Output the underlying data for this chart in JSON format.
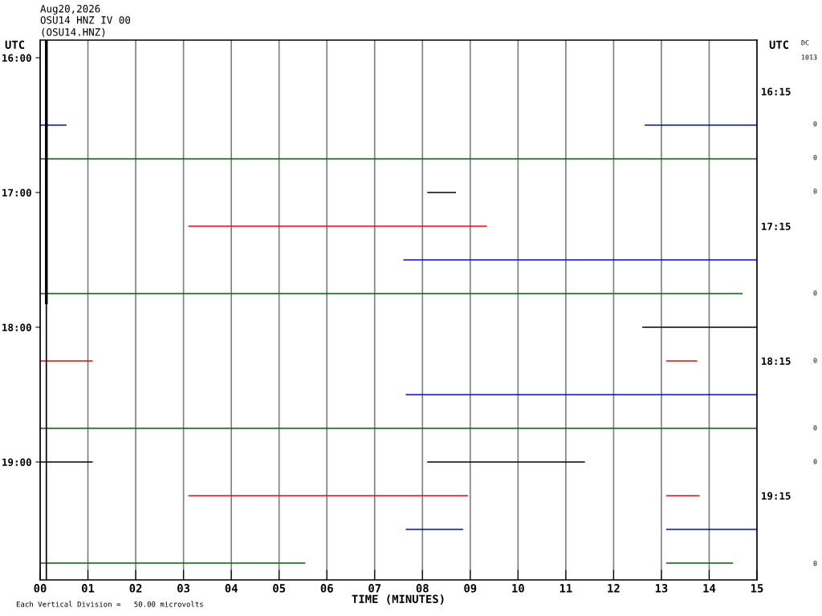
{
  "chart_data": {
    "type": "line",
    "title": "Aug20,2026",
    "subtitle": "OSU14 HNZ IV 00",
    "annotations": [
      "(OSU14.HNZ)",
      "Each Vertical Division =   50.00 microvolts",
      "DC",
      "1013",
      "0",
      "0",
      "0",
      "0",
      "0",
      "0",
      "0",
      "0"
    ],
    "xlabel": "TIME (MINUTES)",
    "ylabel": "UTC",
    "y2label": "UTC",
    "xlim": [
      0,
      15
    ],
    "xticks": [
      {
        "value": 0,
        "label": "00"
      },
      {
        "value": 1,
        "label": "01"
      },
      {
        "value": 2,
        "label": "02"
      },
      {
        "value": 3,
        "label": "03"
      },
      {
        "value": 4,
        "label": "04"
      },
      {
        "value": 5,
        "label": "05"
      },
      {
        "value": 6,
        "label": "06"
      },
      {
        "value": 7,
        "label": "07"
      },
      {
        "value": 8,
        "label": "08"
      },
      {
        "value": 9,
        "label": "09"
      },
      10,
      11,
      12,
      13,
      14,
      15
    ],
    "ylim": [
      19.875,
      15.869
    ],
    "yticks": [
      {
        "value": 16,
        "label": "16:00"
      },
      {
        "value": 17,
        "label": "17:00"
      },
      {
        "value": 18,
        "label": "18:00"
      },
      {
        "value": 19,
        "label": "19:00"
      }
    ],
    "y2lim": [
      19.875,
      15.869
    ],
    "y2ticks": [
      {
        "value": 16.25,
        "label": "16:15"
      },
      {
        "value": 17.25,
        "label": "17:15"
      },
      {
        "value": 18.25,
        "label": "18:15"
      },
      {
        "value": 19.25,
        "label": "19:15"
      }
    ],
    "grid": "x",
    "legend": false,
    "marker": "none",
    "line_style": "solid",
    "series": [
      {
        "color": "#0000ff",
        "x": [
          0,
          0.55
        ],
        "values": [
          16.5,
          16.5
        ]
      },
      {
        "color": "#0000ff",
        "x": [
          12.65,
          15
        ],
        "values": [
          16.5,
          16.5
        ]
      },
      {
        "color": "#006400",
        "x": [
          0,
          15
        ],
        "values": [
          16.75,
          16.75
        ]
      },
      {
        "color": "#000000",
        "x": [
          8.1,
          8.7
        ],
        "values": [
          17,
          17
        ]
      },
      {
        "color": "#ff0000",
        "x": [
          3.1,
          9.35
        ],
        "values": [
          17.25,
          17.25
        ]
      },
      {
        "color": "#0000ff",
        "x": [
          7.6,
          15
        ],
        "values": [
          17.5,
          17.5
        ]
      },
      {
        "color": "#006400",
        "x": [
          0,
          14.7
        ],
        "values": [
          17.75,
          17.75
        ]
      },
      {
        "color": "#000000",
        "x": [
          12.6,
          15
        ],
        "values": [
          18,
          18
        ]
      },
      {
        "color": "#ff0000",
        "x": [
          0,
          1.1
        ],
        "values": [
          18.25,
          18.25
        ]
      },
      {
        "color": "#ff0000",
        "x": [
          13.1,
          13.75
        ],
        "values": [
          18.25,
          18.25
        ]
      },
      {
        "color": "#0000ff",
        "x": [
          7.65,
          15
        ],
        "values": [
          18.5,
          18.5
        ]
      },
      {
        "color": "#006400",
        "x": [
          0,
          15
        ],
        "values": [
          18.75,
          18.75
        ]
      },
      {
        "color": "#000000",
        "x": [
          0,
          1.1
        ],
        "values": [
          19,
          19
        ]
      },
      {
        "color": "#000000",
        "x": [
          8.1,
          11.4
        ],
        "values": [
          19,
          19
        ]
      },
      {
        "color": "#ff0000",
        "x": [
          3.1,
          8.95
        ],
        "values": [
          19.25,
          19.25
        ]
      },
      {
        "color": "#ff0000",
        "x": [
          13.1,
          13.8
        ],
        "values": [
          19.25,
          19.25
        ]
      },
      {
        "color": "#0000ff",
        "x": [
          7.65,
          8.85
        ],
        "values": [
          19.5,
          19.5
        ]
      },
      {
        "color": "#0000ff",
        "x": [
          13.1,
          15
        ],
        "values": [
          19.5,
          19.5
        ]
      },
      {
        "color": "#006400",
        "x": [
          0,
          5.55
        ],
        "values": [
          19.75,
          19.75
        ]
      },
      {
        "color": "#006400",
        "x": [
          13.1,
          14.5
        ],
        "values": [
          19.75,
          19.75
        ]
      },
      {
        "color": "#000000",
        "x": [
          0.13,
          0.13
        ],
        "values": [
          15.869,
          17.83
        ]
      },
      {
        "color": "#000000",
        "x": [
          0.13,
          0.13
        ],
        "values": [
          17.83,
          19.875
        ]
      }
    ]
  }
}
